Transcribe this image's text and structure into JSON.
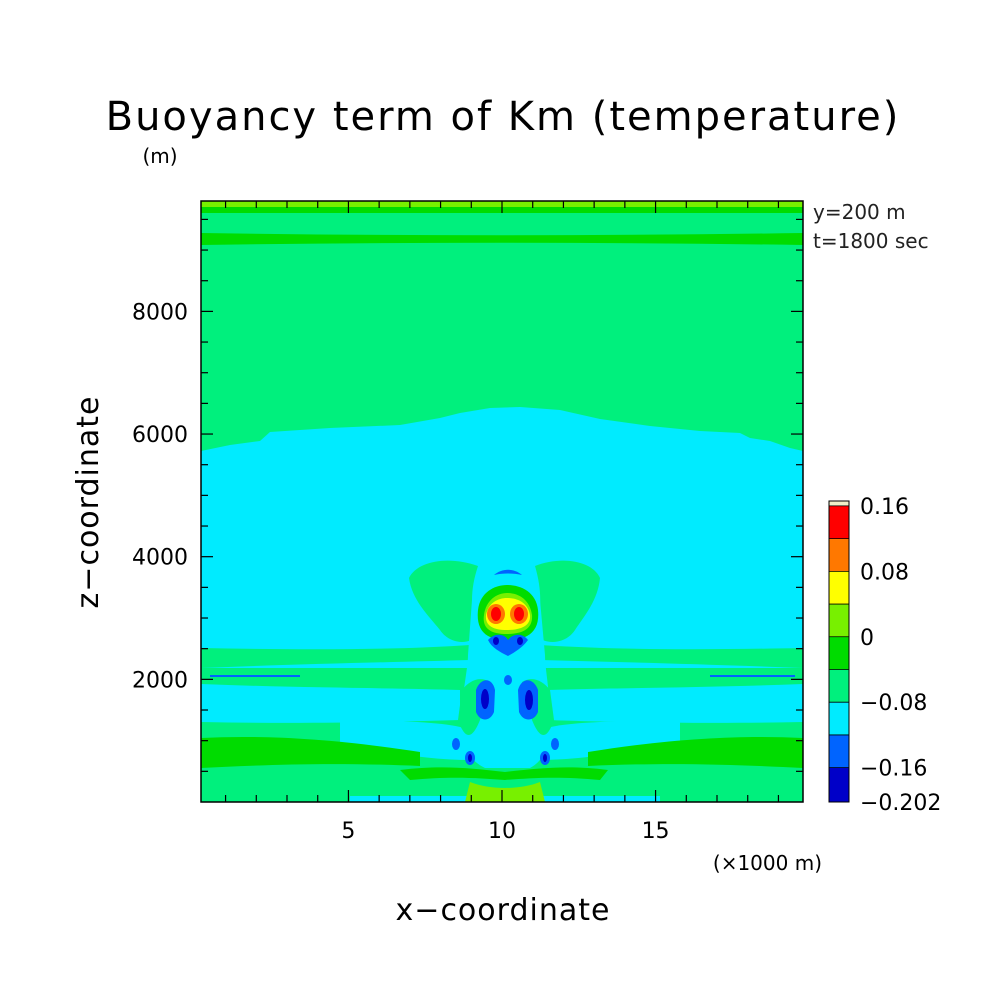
{
  "chart_data": {
    "type": "heatmap",
    "title": "Buoyancy term of Km (temperature)",
    "y_unit": "(m)",
    "x_unit": "(×1000 m)",
    "xlabel": "x−coordinate",
    "ylabel": "z−coordinate",
    "annotations": [
      "y=200 m",
      "t=1800 sec"
    ],
    "x_ticks": [
      5,
      10,
      15
    ],
    "x_tick_labels": [
      "5",
      "10",
      "15"
    ],
    "y_ticks": [
      2000,
      4000,
      6000,
      8000
    ],
    "y_tick_labels": [
      "2000",
      "4000",
      "6000",
      "8000"
    ],
    "xlim": [
      0.2,
      19.8
    ],
    "ylim": [
      0,
      9800
    ],
    "grid": false,
    "colorbar": {
      "levels": [
        -0.202,
        -0.16,
        -0.12,
        -0.08,
        -0.04,
        0,
        0.04,
        0.08,
        0.12,
        0.16,
        0.166
      ],
      "colors": [
        "#0000c8",
        "#0064ff",
        "#00ebff",
        "#00f07d",
        "#00dc00",
        "#78f000",
        "#ffff00",
        "#ff7800",
        "#ff0000",
        "#f0f0c8"
      ],
      "tick_labels": [
        "0.16",
        "0.08",
        "0",
        "−0.08",
        "−0.16",
        "−0.202"
      ],
      "tick_values": [
        0.16,
        0.08,
        0,
        -0.08,
        -0.16,
        -0.202
      ]
    },
    "background_value_class": "-0.08 to -0.04",
    "regions": [
      {
        "range": "0 to 0.04",
        "where": "thin bands near top, z≈9300 and z≈9700"
      },
      {
        "range": "-0.12 to -0.08",
        "where": "broad layer z≈2600–6000, rising to ≈6500 at center"
      },
      {
        "range": "0.12 to 0.16",
        "where": "two cores near x≈9.5 and x≈10.5, z≈3100"
      },
      {
        "range": "-0.202 to -0.16",
        "where": "cores near x≈9.4 and x≈10.6, z≈1700; small cells near x≈9.2 and x≈11.2, z≈700"
      }
    ]
  }
}
